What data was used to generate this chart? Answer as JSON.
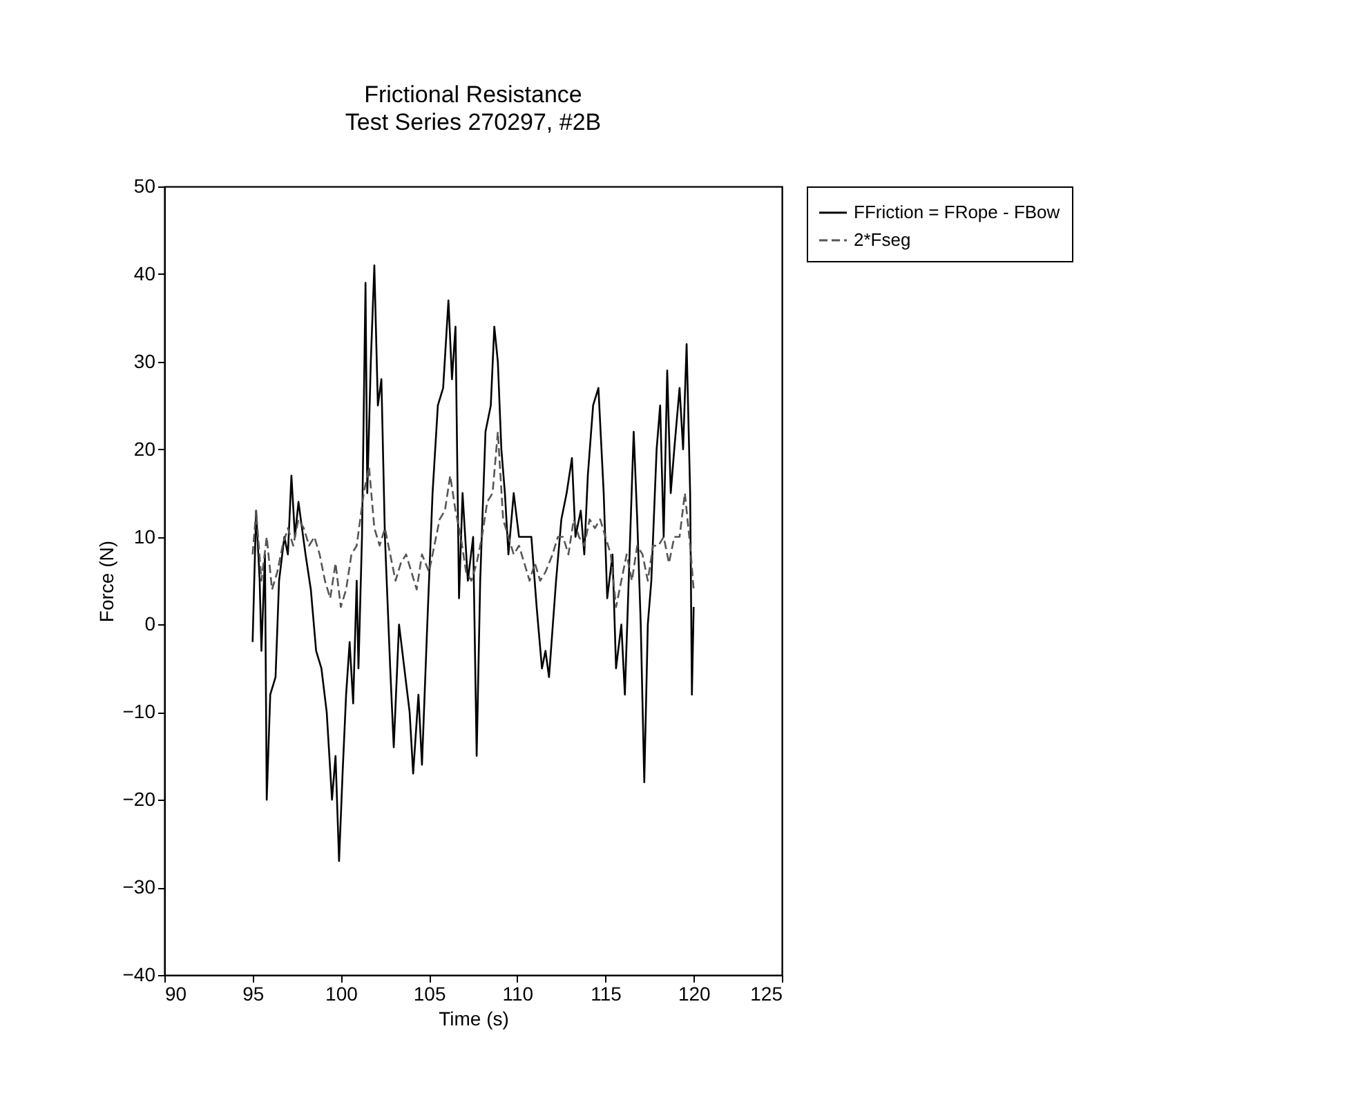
{
  "chart_data": {
    "type": "line",
    "title": "Frictional Resistance",
    "subtitle": "Test Series 270297, #2B",
    "xlabel": "Time (s)",
    "ylabel": "Force (N)",
    "xlim": [
      90,
      125
    ],
    "xticks": [
      90,
      95,
      100,
      105,
      110,
      115,
      120,
      125
    ],
    "ylim": [
      -40,
      50
    ],
    "yticks": [
      -40,
      -30,
      -20,
      -10,
      0,
      10,
      20,
      30,
      40,
      50
    ],
    "grid": false,
    "legend": "top right",
    "marker": "none",
    "series": [
      {
        "name": "FFriction = FRope - FBow",
        "color": "#000000",
        "line_style": "solid",
        "x": [
          95.0,
          95.2,
          95.4,
          95.5,
          95.7,
          95.8,
          96.0,
          96.3,
          96.5,
          96.8,
          97.0,
          97.2,
          97.4,
          97.6,
          97.8,
          98.0,
          98.3,
          98.6,
          98.9,
          99.2,
          99.5,
          99.7,
          99.9,
          100.1,
          100.3,
          100.5,
          100.7,
          100.9,
          101.0,
          101.2,
          101.4,
          101.5,
          101.7,
          101.9,
          102.1,
          102.3,
          102.5,
          102.8,
          103.0,
          103.3,
          103.6,
          103.9,
          104.1,
          104.4,
          104.6,
          104.9,
          105.2,
          105.5,
          105.8,
          106.1,
          106.3,
          106.5,
          106.7,
          106.9,
          107.2,
          107.5,
          107.7,
          107.9,
          108.2,
          108.5,
          108.7,
          108.9,
          109.1,
          109.3,
          109.5,
          109.8,
          110.1,
          110.4,
          110.8,
          111.1,
          111.4,
          111.6,
          111.8,
          112.2,
          112.5,
          112.8,
          113.1,
          113.3,
          113.6,
          113.8,
          114.0,
          114.3,
          114.6,
          114.9,
          115.1,
          115.4,
          115.6,
          115.9,
          116.1,
          116.4,
          116.6,
          116.8,
          117.0,
          117.2,
          117.4,
          117.6,
          117.9,
          118.1,
          118.3,
          118.5,
          118.7,
          118.9,
          119.2,
          119.4,
          119.6,
          119.8,
          119.9,
          120.0
        ],
        "values": [
          -2,
          13,
          5,
          -3,
          8,
          -20,
          -8,
          -6,
          5,
          10,
          8,
          17,
          10,
          14,
          11,
          8,
          4,
          -3,
          -5,
          -10,
          -20,
          -15,
          -27,
          -17,
          -8,
          -2,
          -9,
          5,
          -5,
          10,
          39,
          15,
          30,
          41,
          25,
          28,
          10,
          -5,
          -14,
          0,
          -5,
          -10,
          -17,
          -8,
          -16,
          0,
          15,
          25,
          27,
          37,
          28,
          34,
          3,
          15,
          5,
          10,
          -15,
          5,
          22,
          25,
          34,
          30,
          20,
          15,
          8,
          15,
          10,
          10,
          10,
          2,
          -5,
          -3,
          -6,
          5,
          12,
          15,
          19,
          10,
          13,
          8,
          17,
          25,
          27,
          15,
          3,
          8,
          -5,
          0,
          -8,
          10,
          22,
          12,
          0,
          -18,
          0,
          5,
          20,
          25,
          10,
          29,
          15,
          20,
          27,
          20,
          32,
          15,
          -8,
          2
        ]
      },
      {
        "name": "2*Fseg",
        "color": "#555555",
        "line_style": "dashed",
        "x": [
          95.0,
          95.2,
          95.5,
          95.8,
          96.1,
          96.4,
          96.7,
          97.0,
          97.3,
          97.6,
          97.9,
          98.2,
          98.5,
          98.8,
          99.1,
          99.4,
          99.7,
          100.0,
          100.3,
          100.6,
          100.9,
          101.1,
          101.3,
          101.6,
          101.9,
          102.2,
          102.5,
          102.8,
          103.1,
          103.4,
          103.7,
          104.0,
          104.3,
          104.6,
          105.0,
          105.3,
          105.6,
          105.9,
          106.2,
          106.5,
          106.8,
          107.1,
          107.4,
          107.7,
          108.0,
          108.3,
          108.6,
          108.9,
          109.2,
          109.5,
          109.8,
          110.1,
          110.4,
          110.7,
          111.0,
          111.3,
          111.6,
          112.0,
          112.3,
          112.6,
          112.9,
          113.2,
          113.5,
          113.8,
          114.1,
          114.4,
          114.7,
          115.0,
          115.3,
          115.6,
          115.9,
          116.2,
          116.5,
          116.8,
          117.1,
          117.4,
          117.7,
          118.0,
          118.3,
          118.6,
          118.9,
          119.2,
          119.5,
          119.8,
          120.0
        ],
        "values": [
          8,
          13,
          5,
          10,
          4,
          6,
          9,
          11,
          9,
          12,
          11,
          9,
          10,
          8,
          5,
          3,
          7,
          2,
          4,
          8,
          9,
          12,
          15,
          18,
          11,
          9,
          11,
          8,
          5,
          7,
          8,
          6,
          4,
          8,
          6,
          9,
          12,
          13,
          17,
          13,
          10,
          6,
          5,
          7,
          10,
          14,
          15,
          22,
          12,
          10,
          8,
          9,
          7,
          5,
          7,
          5,
          6,
          8,
          10,
          10,
          8,
          12,
          10,
          9,
          12,
          11,
          12,
          10,
          8,
          2,
          5,
          8,
          5,
          9,
          8,
          5,
          9,
          9,
          10,
          7,
          10,
          10,
          15,
          9,
          4
        ]
      }
    ]
  }
}
